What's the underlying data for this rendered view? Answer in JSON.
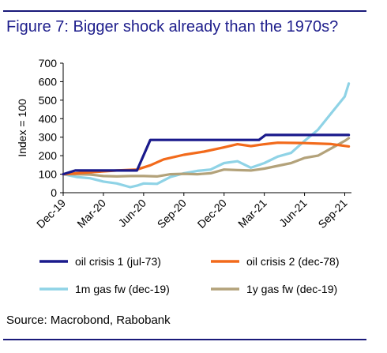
{
  "header": {
    "title": "Figure 7: Bigger shock already than the 1970s?"
  },
  "footer": {
    "source": "Source: Macrobond, Rabobank"
  },
  "chart_data": {
    "type": "line",
    "ylabel": "Index = 100",
    "ylim": [
      0,
      700
    ],
    "yticks": [
      0,
      100,
      200,
      300,
      400,
      500,
      600,
      700
    ],
    "xlim": [
      0,
      21.5
    ],
    "xticks": [
      {
        "label": "Dec-19",
        "x": 0
      },
      {
        "label": "Mar-20",
        "x": 3
      },
      {
        "label": "Jun-20",
        "x": 6
      },
      {
        "label": "Sep-20",
        "x": 9
      },
      {
        "label": "Dec-20",
        "x": 12
      },
      {
        "label": "Mar-21",
        "x": 15
      },
      {
        "label": "Jun-21",
        "x": 18
      },
      {
        "label": "Sep-21",
        "x": 21
      }
    ],
    "grid": false,
    "legend_position": "bottom",
    "series": [
      {
        "name": "oil crisis 1 (jul-73)",
        "color": "#1a1a8c",
        "points": [
          [
            0,
            100
          ],
          [
            0.9,
            120
          ],
          [
            3,
            120
          ],
          [
            5.5,
            120
          ],
          [
            6.5,
            285
          ],
          [
            9,
            285
          ],
          [
            12,
            285
          ],
          [
            14.6,
            285
          ],
          [
            15.1,
            312
          ],
          [
            18,
            312
          ],
          [
            21.3,
            312
          ]
        ]
      },
      {
        "name": "oil crisis 2 (dec-78)",
        "color": "#f26a1b",
        "points": [
          [
            0,
            100
          ],
          [
            2,
            110
          ],
          [
            4,
            120
          ],
          [
            5.5,
            125
          ],
          [
            6.5,
            148
          ],
          [
            7.5,
            180
          ],
          [
            9,
            205
          ],
          [
            10.5,
            222
          ],
          [
            12,
            245
          ],
          [
            13,
            262
          ],
          [
            14,
            252
          ],
          [
            15,
            262
          ],
          [
            16,
            270
          ],
          [
            18,
            268
          ],
          [
            20,
            263
          ],
          [
            21.3,
            250
          ]
        ]
      },
      {
        "name": "1m gas fw (dec-19)",
        "color": "#8fd3e6",
        "points": [
          [
            0,
            100
          ],
          [
            1,
            85
          ],
          [
            2,
            78
          ],
          [
            3,
            60
          ],
          [
            4,
            50
          ],
          [
            5,
            30
          ],
          [
            5.5,
            38
          ],
          [
            6,
            50
          ],
          [
            7,
            48
          ],
          [
            8,
            85
          ],
          [
            9,
            105
          ],
          [
            10,
            118
          ],
          [
            11,
            125
          ],
          [
            12,
            160
          ],
          [
            13,
            170
          ],
          [
            14,
            135
          ],
          [
            15,
            160
          ],
          [
            16,
            195
          ],
          [
            17,
            215
          ],
          [
            18,
            280
          ],
          [
            19,
            340
          ],
          [
            20,
            430
          ],
          [
            21,
            520
          ],
          [
            21.3,
            590
          ]
        ]
      },
      {
        "name": "1y gas fw (dec-19)",
        "color": "#b3a27a",
        "points": [
          [
            0,
            100
          ],
          [
            1,
            100
          ],
          [
            2,
            98
          ],
          [
            3,
            90
          ],
          [
            4,
            88
          ],
          [
            5,
            90
          ],
          [
            6,
            90
          ],
          [
            7,
            88
          ],
          [
            8,
            100
          ],
          [
            9,
            102
          ],
          [
            10,
            100
          ],
          [
            11,
            105
          ],
          [
            12,
            125
          ],
          [
            13,
            122
          ],
          [
            14,
            120
          ],
          [
            15,
            130
          ],
          [
            16,
            145
          ],
          [
            17,
            160
          ],
          [
            18,
            188
          ],
          [
            19,
            200
          ],
          [
            20,
            240
          ],
          [
            21,
            280
          ],
          [
            21.3,
            295
          ]
        ]
      }
    ]
  }
}
